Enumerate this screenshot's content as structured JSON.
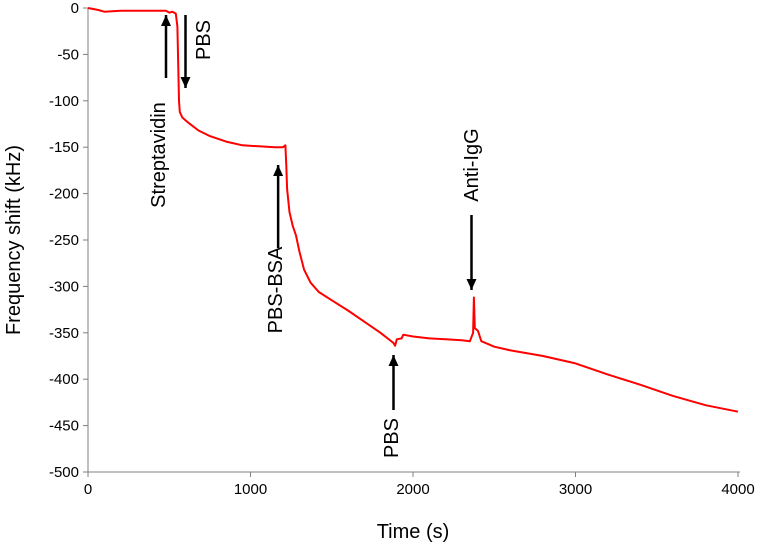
{
  "chart_data": {
    "type": "line",
    "title": "",
    "xlabel": "Time (s)",
    "ylabel": "Frequency shift (kHz)",
    "xlim": [
      0,
      4000
    ],
    "ylim": [
      -500,
      0
    ],
    "xticks": [
      0,
      1000,
      2000,
      3000,
      4000
    ],
    "yticks": [
      0,
      -50,
      -100,
      -150,
      -200,
      -250,
      -300,
      -350,
      -400,
      -450,
      -500
    ],
    "grid": false,
    "legend": "none",
    "series": [
      {
        "color": "#ff0000",
        "points": [
          [
            0,
            0
          ],
          [
            60,
            -2
          ],
          [
            100,
            -4
          ],
          [
            200,
            -3
          ],
          [
            300,
            -3
          ],
          [
            400,
            -3
          ],
          [
            480,
            -3
          ],
          [
            500,
            -5
          ],
          [
            520,
            -4
          ],
          [
            540,
            -6
          ],
          [
            550,
            -20
          ],
          [
            555,
            -60
          ],
          [
            560,
            -100
          ],
          [
            565,
            -112
          ],
          [
            580,
            -118
          ],
          [
            620,
            -124
          ],
          [
            680,
            -132
          ],
          [
            750,
            -138
          ],
          [
            850,
            -144
          ],
          [
            950,
            -148
          ],
          [
            1050,
            -149
          ],
          [
            1150,
            -150
          ],
          [
            1200,
            -150
          ],
          [
            1215,
            -148
          ],
          [
            1220,
            -170
          ],
          [
            1225,
            -195
          ],
          [
            1240,
            -220
          ],
          [
            1260,
            -235
          ],
          [
            1280,
            -245
          ],
          [
            1300,
            -262
          ],
          [
            1330,
            -282
          ],
          [
            1370,
            -296
          ],
          [
            1420,
            -306
          ],
          [
            1500,
            -315
          ],
          [
            1600,
            -326
          ],
          [
            1700,
            -338
          ],
          [
            1800,
            -350
          ],
          [
            1880,
            -361
          ],
          [
            1890,
            -364
          ],
          [
            1900,
            -357
          ],
          [
            1930,
            -356
          ],
          [
            1940,
            -352
          ],
          [
            2000,
            -354
          ],
          [
            2100,
            -356
          ],
          [
            2200,
            -357
          ],
          [
            2300,
            -358
          ],
          [
            2350,
            -359
          ],
          [
            2370,
            -350
          ],
          [
            2375,
            -312
          ],
          [
            2380,
            -345
          ],
          [
            2400,
            -348
          ],
          [
            2420,
            -359
          ],
          [
            2500,
            -365
          ],
          [
            2600,
            -369
          ],
          [
            2800,
            -375
          ],
          [
            3000,
            -383
          ],
          [
            3200,
            -395
          ],
          [
            3400,
            -406
          ],
          [
            3600,
            -418
          ],
          [
            3800,
            -428
          ],
          [
            4000,
            -435
          ]
        ]
      }
    ],
    "annotations": [
      {
        "label": "Streptavidin",
        "x": 480,
        "label_direction": "below",
        "arrow": "up"
      },
      {
        "label": "PBS",
        "x": 600,
        "label_direction": "above",
        "arrow": "down"
      },
      {
        "label": "PBS-BSA",
        "x": 1170,
        "label_direction": "below",
        "arrow": "up"
      },
      {
        "label": "PBS",
        "x": 1880,
        "label_direction": "below",
        "arrow": "up"
      },
      {
        "label": "Anti-IgG",
        "x": 2360,
        "label_direction": "above",
        "arrow": "down"
      }
    ]
  }
}
